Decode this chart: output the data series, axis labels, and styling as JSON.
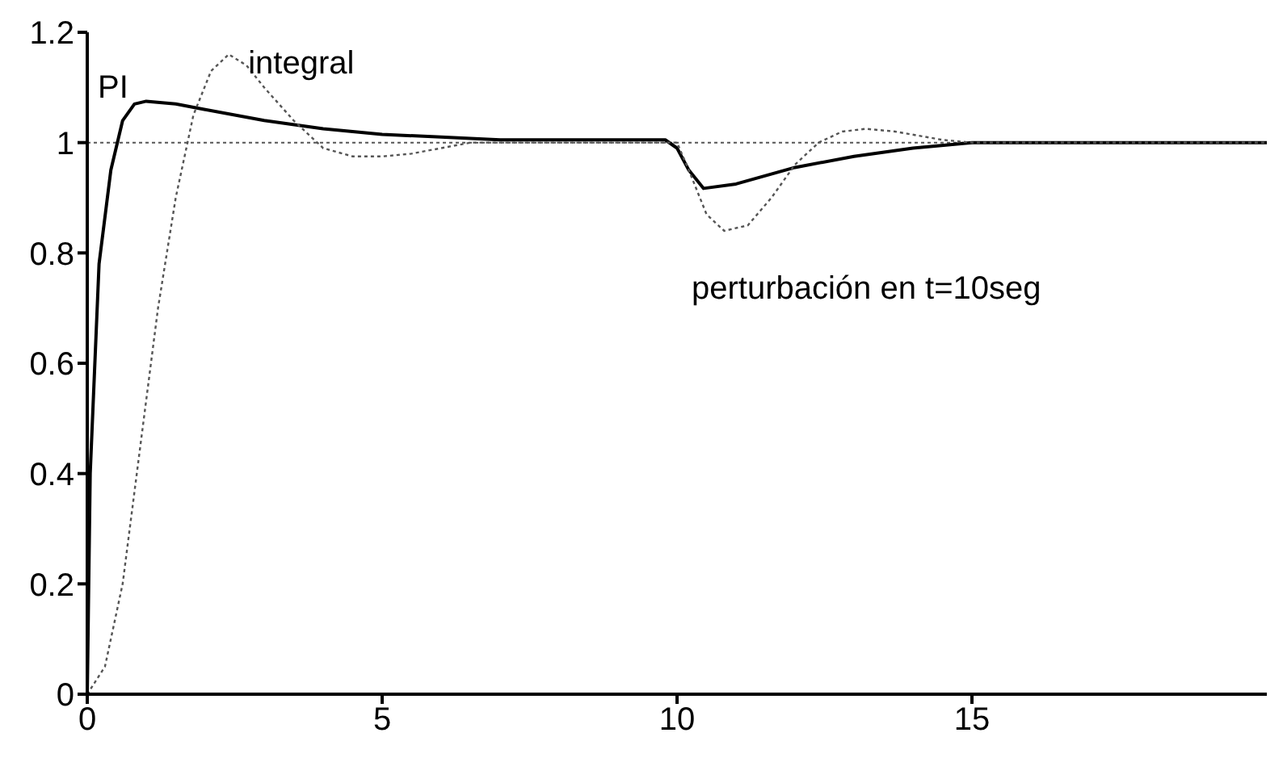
{
  "chart_data": {
    "type": "line",
    "xlim": [
      0,
      20
    ],
    "xticks": [
      0,
      5,
      10,
      15
    ],
    "ylim": [
      0,
      1.2
    ],
    "yticks": [
      0,
      0.2,
      0.4,
      0.6,
      0.8,
      1,
      1.2
    ],
    "grid": false,
    "legend": false,
    "marker": "none",
    "ref_lines": [
      {
        "axis": "y",
        "value": 1,
        "line_style": "dotted",
        "color": "#555555"
      }
    ],
    "annotations": [
      "perturbación en t=10seg"
    ],
    "series": [
      {
        "name": "PI",
        "color": "#000000",
        "line_style": "solid",
        "x": [
          0,
          0.05,
          0.2,
          0.4,
          0.6,
          0.8,
          1,
          1.5,
          2,
          3,
          4,
          5,
          6,
          7,
          9.8,
          10,
          10.2,
          10.45,
          11,
          11.5,
          12,
          13,
          14,
          15,
          20
        ],
        "values": [
          0,
          0.4,
          0.78,
          0.95,
          1.04,
          1.07,
          1.075,
          1.07,
          1.06,
          1.04,
          1.025,
          1.015,
          1.01,
          1.005,
          1.005,
          0.99,
          0.95,
          0.917,
          0.925,
          0.94,
          0.955,
          0.975,
          0.99,
          1,
          1
        ]
      },
      {
        "name": "integral",
        "color": "#555555",
        "line_style": "dotted",
        "x": [
          0,
          0.3,
          0.6,
          0.9,
          1.2,
          1.5,
          1.8,
          2.1,
          2.4,
          2.7,
          3,
          3.5,
          4,
          4.5,
          5,
          5.5,
          6,
          6.5,
          10,
          10.2,
          10.5,
          10.8,
          11.2,
          11.6,
          12,
          12.4,
          12.8,
          13.2,
          13.7,
          14.5,
          15,
          20
        ],
        "values": [
          0,
          0.05,
          0.2,
          0.45,
          0.7,
          0.9,
          1.05,
          1.13,
          1.16,
          1.14,
          1.1,
          1.04,
          0.99,
          0.975,
          0.975,
          0.98,
          0.99,
          1,
          1,
          0.95,
          0.87,
          0.84,
          0.85,
          0.9,
          0.96,
          1,
          1.02,
          1.025,
          1.02,
          1.005,
          1,
          1
        ]
      }
    ]
  }
}
